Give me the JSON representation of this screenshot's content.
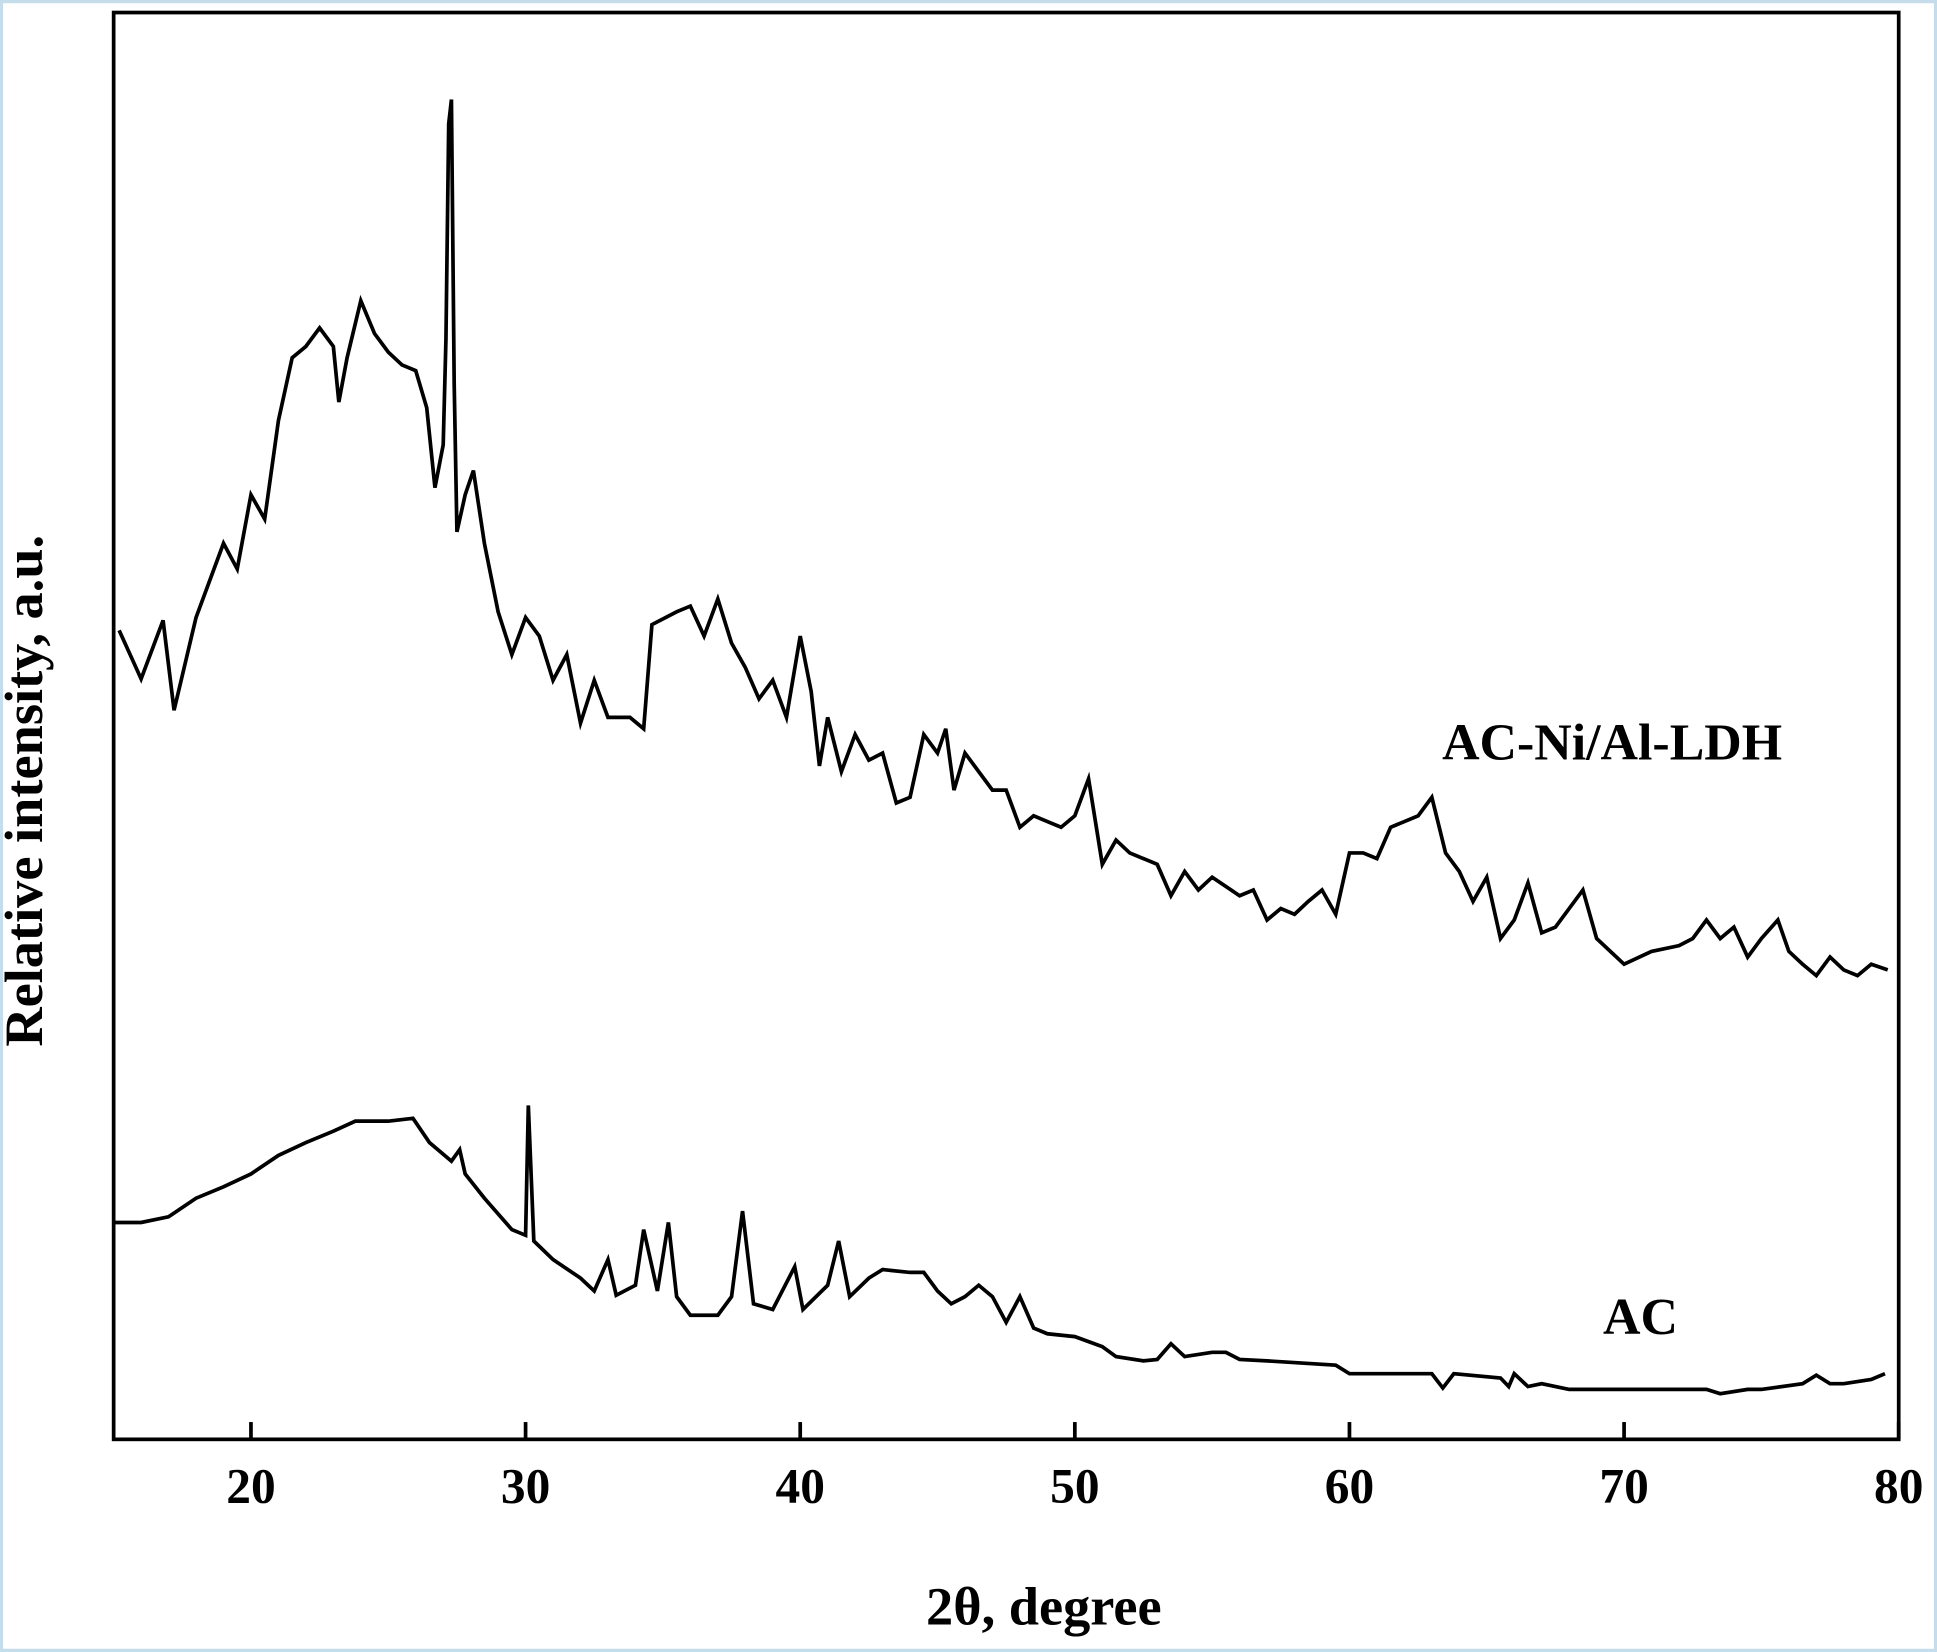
{
  "chart_data": {
    "type": "line",
    "xlabel": "2θ, degree",
    "ylabel": "Relative intensity, a.u.",
    "xlim": [
      15,
      80
    ],
    "xticks": [
      20,
      30,
      40,
      50,
      60,
      70,
      80
    ],
    "ylim": [
      0,
      100
    ],
    "series": [
      {
        "name": "AC-Ni/Al-LDH",
        "color": "#000000",
        "x": [
          15.2,
          16,
          16.8,
          17.2,
          18,
          19,
          19.5,
          20,
          20.5,
          21,
          21.5,
          22,
          22.5,
          23,
          23.2,
          23.5,
          24,
          24.5,
          25,
          25.5,
          26,
          26.4,
          26.7,
          27,
          27.1,
          27.2,
          27.3,
          27.4,
          27.5,
          27.8,
          28.1,
          28.5,
          29,
          29.5,
          30,
          30.5,
          31,
          31.5,
          32,
          32.5,
          33,
          33.8,
          34.3,
          34.6,
          35.5,
          36,
          36.5,
          37,
          37.5,
          38,
          38.5,
          39,
          39.5,
          40,
          40.4,
          40.7,
          41,
          41.5,
          42,
          42.5,
          43,
          43.5,
          44,
          44.5,
          45,
          45.3,
          45.6,
          46,
          46.5,
          47,
          47.5,
          48,
          48.5,
          49,
          49.5,
          50,
          50.5,
          51,
          51.5,
          52,
          53,
          53.5,
          54,
          54.5,
          55,
          56,
          56.5,
          57,
          57.5,
          58,
          58.5,
          59,
          59.5,
          60,
          60.5,
          61,
          61.5,
          62,
          62.5,
          63,
          63.5,
          64,
          64.5,
          65,
          65.5,
          66,
          66.5,
          67,
          67.5,
          68,
          68.5,
          69,
          69.5,
          70,
          71,
          72,
          72.5,
          73,
          73.5,
          74,
          74.5,
          75,
          75.6,
          76,
          76.5,
          77,
          77.5,
          78,
          78.5,
          79,
          79.6
        ],
        "values": [
          56.7,
          53.3,
          57.4,
          51.1,
          57.6,
          62.8,
          61.0,
          66.2,
          64.5,
          71.4,
          75.8,
          76.6,
          77.9,
          76.6,
          72.7,
          75.8,
          79.8,
          77.5,
          76.2,
          75.3,
          74.9,
          72.3,
          66.7,
          69.7,
          77.1,
          92.2,
          93.9,
          74.0,
          63.6,
          66.2,
          67.9,
          62.8,
          58.0,
          55.0,
          57.6,
          56.3,
          53.2,
          55.0,
          50.2,
          53.2,
          50.6,
          50.6,
          49.8,
          57.1,
          58.0,
          58.4,
          56.3,
          58.9,
          55.8,
          54.1,
          51.9,
          53.2,
          50.6,
          56.3,
          52.4,
          47.2,
          50.6,
          46.8,
          49.4,
          47.6,
          48.1,
          44.6,
          45.0,
          49.4,
          48.1,
          49.8,
          45.5,
          48.1,
          46.8,
          45.5,
          45.5,
          42.9,
          43.7,
          43.3,
          42.9,
          43.7,
          46.3,
          40.3,
          42.0,
          41.1,
          40.3,
          38.1,
          39.8,
          38.5,
          39.4,
          38.1,
          38.5,
          36.4,
          37.2,
          36.8,
          37.7,
          38.5,
          36.8,
          41.1,
          41.1,
          40.7,
          42.9,
          43.3,
          43.7,
          45.0,
          41.1,
          39.8,
          37.7,
          39.4,
          35.1,
          36.4,
          39.0,
          35.5,
          35.9,
          37.2,
          38.5,
          35.1,
          34.2,
          33.3,
          34.2,
          34.6,
          35.1,
          36.4,
          35.1,
          35.9,
          33.8,
          35.1,
          36.4,
          34.2,
          33.3,
          32.5,
          33.8,
          32.9,
          32.5,
          33.3,
          32.9
        ]
      },
      {
        "name": "AC",
        "color": "#000000",
        "x": [
          15,
          16,
          17,
          18,
          19,
          20,
          21,
          22,
          23,
          23.8,
          25,
          25.9,
          26.5,
          27.3,
          27.6,
          27.8,
          28.5,
          29.5,
          30,
          30.1,
          30.3,
          31,
          32,
          32.5,
          33,
          33.3,
          34,
          34.3,
          34.8,
          35.2,
          35.5,
          36,
          37,
          37.5,
          37.9,
          38.3,
          39,
          39.8,
          40.1,
          41,
          41.4,
          41.8,
          42.5,
          43,
          44,
          44.5,
          45,
          45.5,
          46,
          46.5,
          47,
          47.5,
          48,
          48.5,
          49,
          50,
          51,
          51.5,
          52.5,
          53,
          53.5,
          54,
          55,
          55.5,
          56,
          57,
          59.5,
          60,
          63,
          63.4,
          63.8,
          65.5,
          65.8,
          66,
          66.5,
          67,
          68,
          73,
          73.5,
          74.5,
          75,
          76.5,
          77,
          77.5,
          78,
          79,
          79.5
        ],
        "values": [
          15.2,
          15.2,
          15.6,
          16.9,
          17.7,
          18.6,
          19.9,
          20.8,
          21.6,
          22.3,
          22.3,
          22.5,
          20.8,
          19.5,
          20.3,
          18.6,
          16.9,
          14.7,
          14.3,
          23.4,
          13.9,
          12.6,
          11.3,
          10.4,
          12.6,
          10.1,
          10.8,
          14.7,
          10.4,
          15.2,
          10.0,
          8.7,
          8.7,
          10.0,
          16.0,
          9.5,
          9.1,
          12.1,
          9.1,
          10.8,
          13.9,
          10.0,
          11.3,
          11.9,
          11.7,
          11.7,
          10.4,
          9.5,
          10.0,
          10.8,
          10.0,
          8.2,
          10.0,
          7.8,
          7.4,
          7.2,
          6.5,
          5.8,
          5.5,
          5.6,
          6.7,
          5.8,
          6.1,
          6.1,
          5.6,
          5.5,
          5.2,
          4.6,
          4.6,
          3.6,
          4.6,
          4.3,
          3.7,
          4.6,
          3.7,
          3.9,
          3.5,
          3.5,
          3.2,
          3.5,
          3.5,
          3.9,
          4.5,
          3.9,
          3.9,
          4.2,
          4.6
        ]
      }
    ]
  }
}
